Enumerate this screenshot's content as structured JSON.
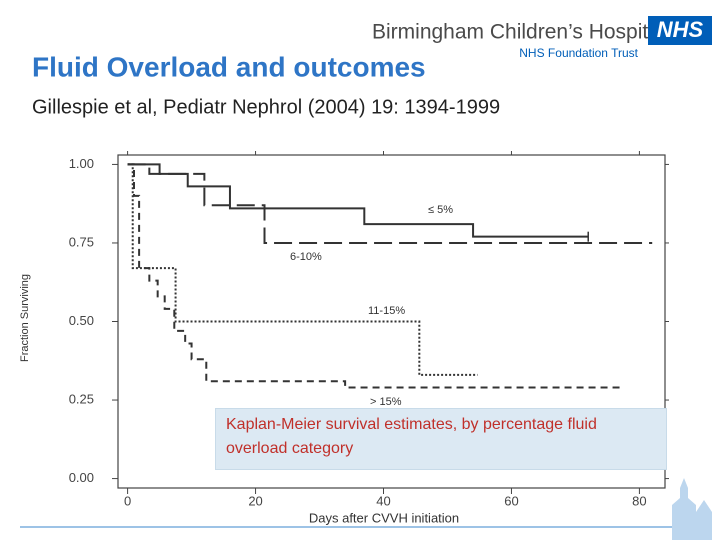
{
  "header": {
    "hospital": "Birmingham Children’s Hospital",
    "nhs": "NHS",
    "trust": "NHS Foundation Trust"
  },
  "chart_data": {
    "type": "step",
    "title": "Fluid Overload and outcomes",
    "subtitle": "Gillespie et al, Pediatr Nephrol (2004) 19: 1394-1999",
    "x_label": "Days after CVVH initiation",
    "y_label": "Fraction Surviving",
    "annotation": "Kaplan-Meier survival estimates, by percentage fluid overload category",
    "xlim": [
      -1.5,
      84
    ],
    "ylim": [
      -0.03,
      1.03
    ],
    "xticks": [
      0,
      20,
      40,
      60,
      80
    ],
    "yticks": [
      {
        "value": 0,
        "label": "0.00"
      },
      {
        "value": 0.25,
        "label": "0.25"
      },
      {
        "value": 0.5,
        "label": "0.50"
      },
      {
        "value": 0.75,
        "label": "0.75"
      },
      {
        "value": 1,
        "label": "1.00"
      }
    ],
    "series": [
      {
        "name": "≤ 5%",
        "color": "#333333",
        "dash": "solid",
        "x": [
          0,
          5,
          9.4,
          16,
          37,
          54,
          72
        ],
        "values": [
          1,
          0.97,
          0.93,
          0.86,
          0.81,
          0.77,
          0.77
        ]
      },
      {
        "name": "6-10%",
        "color": "#333333",
        "dash": "long",
        "x": [
          0,
          3.4,
          12,
          21.4,
          82
        ],
        "values": [
          1,
          0.97,
          0.87,
          0.75,
          0.75
        ]
      },
      {
        "name": "11-15%",
        "color": "#333333",
        "dash": "dotted",
        "x": [
          0,
          0.8,
          7.5,
          45.6,
          54.7
        ],
        "values": [
          1,
          0.67,
          0.5,
          0.33,
          0.33
        ]
      },
      {
        "name": "> 15%",
        "color": "#333333",
        "dash": "short",
        "x": [
          0,
          1,
          1.8,
          3.4,
          4.7,
          5.8,
          7.3,
          9,
          10,
          12.3,
          34,
          77
        ],
        "values": [
          1,
          0.9,
          0.67,
          0.63,
          0.58,
          0.54,
          0.47,
          0.43,
          0.38,
          0.31,
          0.29,
          0.29
        ]
      }
    ]
  }
}
